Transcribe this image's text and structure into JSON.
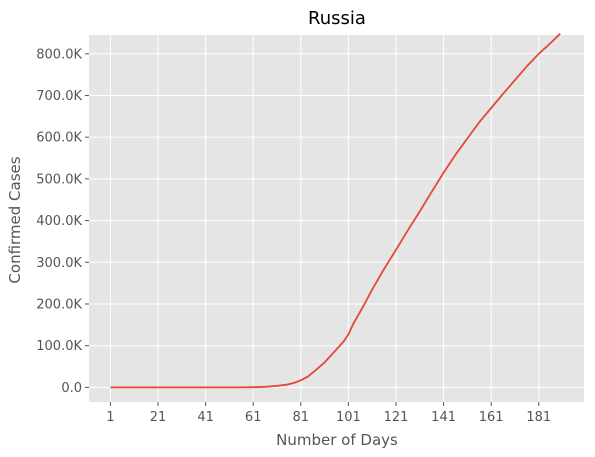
{
  "chart_data": {
    "type": "line",
    "title": "Russia",
    "xlabel": "Number of Days",
    "ylabel": "Confirmed Cases",
    "xlim": [
      -8,
      200
    ],
    "ylim": [
      -35000,
      845000
    ],
    "x_ticks": [
      1,
      21,
      41,
      61,
      81,
      101,
      121,
      141,
      161,
      181
    ],
    "y_ticks": [
      {
        "value": 0,
        "label": "0.0"
      },
      {
        "value": 100000,
        "label": "100.0K"
      },
      {
        "value": 200000,
        "label": "200.0K"
      },
      {
        "value": 300000,
        "label": "300.0K"
      },
      {
        "value": 400000,
        "label": "400.0K"
      },
      {
        "value": 500000,
        "label": "500.0K"
      },
      {
        "value": 600000,
        "label": "600.0K"
      },
      {
        "value": 700000,
        "label": "700.0K"
      },
      {
        "value": 800000,
        "label": "800.0K"
      }
    ],
    "grid": true,
    "colors": {
      "background": "#e5e5e5",
      "grid": "#ffffff",
      "line": "#e24a33"
    },
    "series": [
      {
        "x": [
          1,
          21,
          41,
          55,
          61,
          66,
          71,
          75,
          78,
          81,
          84,
          87,
          91,
          95,
          99,
          101,
          103,
          107,
          111,
          116,
          121,
          126,
          131,
          136,
          141,
          146,
          151,
          156,
          161,
          166,
          171,
          176,
          181,
          186,
          190
        ],
        "values": [
          0,
          0,
          0,
          100,
          500,
          1500,
          3500,
          6500,
          10500,
          17000,
          26000,
          40000,
          60000,
          85000,
          110000,
          127000,
          152000,
          192000,
          235000,
          284000,
          330000,
          377000,
          422000,
          469000,
          515000,
          558000,
          597000,
          636000,
          670000,
          704000,
          737000,
          770000,
          800000,
          826000,
          848000
        ]
      }
    ]
  }
}
